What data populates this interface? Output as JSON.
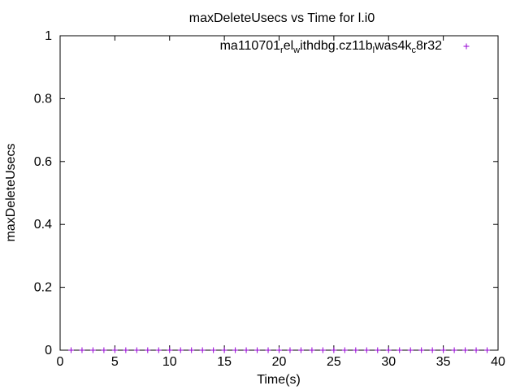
{
  "chart_data": {
    "type": "scatter",
    "title": "maxDeleteUsecs vs Time for l.i0",
    "xlabel": "Time(s)",
    "ylabel": "maxDeleteUsecs",
    "xlim": [
      0,
      40
    ],
    "ylim": [
      0,
      1
    ],
    "x_ticks": [
      "0",
      "5",
      "10",
      "15",
      "20",
      "25",
      "30",
      "35",
      "40"
    ],
    "y_ticks": [
      "0",
      "0.2",
      "0.4",
      "0.6",
      "0.8",
      "1"
    ],
    "grid": false,
    "legend_position": "top-right",
    "legend": {
      "label_parts": [
        {
          "text": "ma110701",
          "sub": ""
        },
        {
          "text": "",
          "sub": "r"
        },
        {
          "text": "el",
          "sub": ""
        },
        {
          "text": "",
          "sub": "w"
        },
        {
          "text": "ithdbg.cz11b",
          "sub": ""
        },
        {
          "text": "",
          "sub": "l"
        },
        {
          "text": "was4k",
          "sub": ""
        },
        {
          "text": "",
          "sub": "c"
        },
        {
          "text": "8r32",
          "sub": ""
        }
      ]
    },
    "series": [
      {
        "color": "#9400d3",
        "marker": "plus",
        "x": [
          1,
          2,
          3,
          4,
          5,
          6,
          7,
          8,
          9,
          10,
          11,
          12,
          13,
          14,
          15,
          16,
          17,
          18,
          19,
          20,
          21,
          22,
          23,
          24,
          25,
          26,
          27,
          28,
          29,
          30,
          31,
          32,
          33,
          34,
          35,
          36,
          37,
          38,
          39
        ],
        "y": [
          0,
          0,
          0,
          0,
          0,
          0,
          0,
          0,
          0,
          0,
          0,
          0,
          0,
          0,
          0,
          0,
          0,
          0,
          0,
          0,
          0,
          0,
          0,
          0,
          0,
          0,
          0,
          0,
          0,
          0,
          0,
          0,
          0,
          0,
          0,
          0,
          0,
          0,
          0
        ]
      }
    ]
  }
}
